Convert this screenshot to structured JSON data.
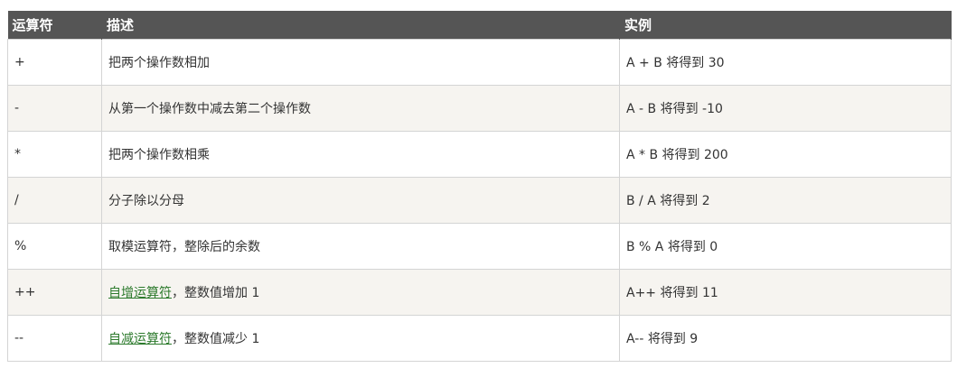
{
  "table": {
    "headers": [
      "运算符",
      "描述",
      "实例"
    ],
    "rows": [
      {
        "op": "+",
        "desc": "把两个操作数相加",
        "link": "",
        "desc_rest": "",
        "example": "A + B 将得到 30"
      },
      {
        "op": "-",
        "desc": "从第一个操作数中减去第二个操作数",
        "link": "",
        "desc_rest": "",
        "example": "A - B 将得到 -10"
      },
      {
        "op": "*",
        "desc": "把两个操作数相乘",
        "link": "",
        "desc_rest": "",
        "example": "A * B 将得到 200"
      },
      {
        "op": "/",
        "desc": "分子除以分母",
        "link": "",
        "desc_rest": "",
        "example": "B / A 将得到 2"
      },
      {
        "op": "%",
        "desc": "取模运算符，整除后的余数",
        "link": "",
        "desc_rest": "",
        "example": "B % A 将得到 0"
      },
      {
        "op": "++",
        "desc": "",
        "link": "自增运算符",
        "desc_rest": "，整数值增加 1",
        "example": "A++ 将得到 11"
      },
      {
        "op": "--",
        "desc": "",
        "link": "自减运算符",
        "desc_rest": "，整数值减少 1",
        "example": "A-- 将得到 9"
      }
    ]
  },
  "colors": {
    "header_bg": "#555555",
    "header_text": "#ffffff",
    "row_alt_bg": "#f6f4f0",
    "link": "#2c7a2c",
    "border": "#d4d4d4"
  }
}
